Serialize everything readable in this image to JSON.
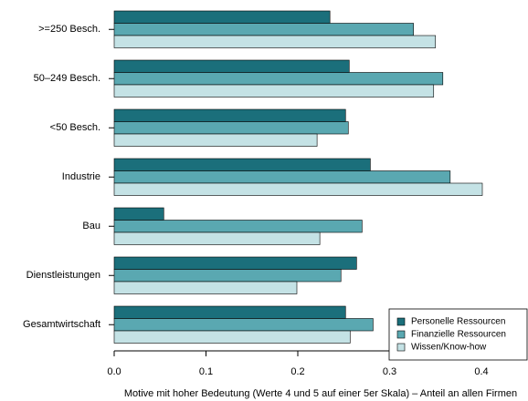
{
  "chart_data": {
    "type": "barh",
    "xlabel": "Motive mit hoher Bedeutung (Werte 4 und 5 auf einer 5er Skala) – Anteil an allen Firmen",
    "categories": [
      ">=250 Besch.",
      "50–249 Besch.",
      "<50 Besch.",
      "Industrie",
      "Bau",
      "Dienstleistungen",
      "Gesamtwirtschaft"
    ],
    "series": [
      {
        "name": "Personelle Ressourcen",
        "color": "#1b6f7b",
        "values": [
          0.235,
          0.256,
          0.252,
          0.279,
          0.054,
          0.264,
          0.252
        ]
      },
      {
        "name": "Finanzielle Ressourcen",
        "color": "#5aa8b1",
        "values": [
          0.326,
          0.358,
          0.255,
          0.366,
          0.27,
          0.247,
          0.282
        ]
      },
      {
        "name": "Wissen/Know-how",
        "color": "#c4e2e5",
        "values": [
          0.35,
          0.348,
          0.221,
          0.401,
          0.224,
          0.199,
          0.257
        ]
      }
    ],
    "xlim": [
      0,
      0.4
    ],
    "xticks": [
      {
        "value": 0,
        "label": "0.0"
      },
      0.1,
      0.2,
      0.3,
      0.4
    ],
    "legend": "lower right"
  }
}
